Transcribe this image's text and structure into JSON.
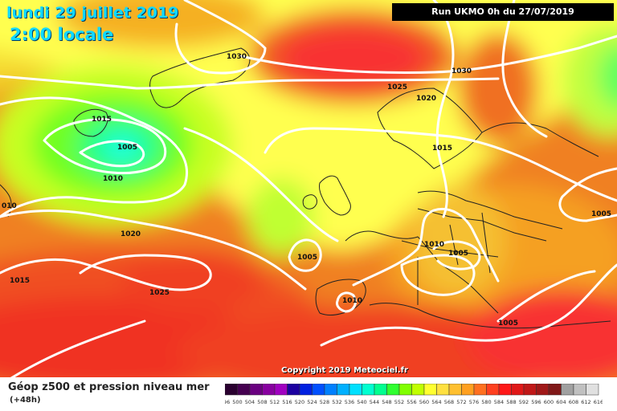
{
  "header": {
    "date": "lundi 29 juillet 2019",
    "local_time": "2:00 locale",
    "run": "Run UKMO 0h du 27/07/2019"
  },
  "copyright": "Copyright 2019 Meteociel.fr",
  "footer": {
    "title": "Géop z500 et pression niveau mer",
    "subtitle": "(+48h)"
  },
  "isobars": [
    {
      "text": "1030"
    },
    {
      "text": "1030"
    },
    {
      "text": "1025"
    },
    {
      "text": "1020"
    },
    {
      "text": "1015"
    },
    {
      "text": "1005"
    },
    {
      "text": "1010"
    },
    {
      "text": "1015"
    },
    {
      "text": "010"
    },
    {
      "text": "1020"
    },
    {
      "text": "1005"
    },
    {
      "text": "1010"
    },
    {
      "text": "1005"
    },
    {
      "text": "1005"
    },
    {
      "text": "1015"
    },
    {
      "text": "1025"
    },
    {
      "text": "1010"
    },
    {
      "text": "1005"
    }
  ],
  "colorbar": {
    "labels": [
      "496",
      "500",
      "504",
      "508",
      "512",
      "516",
      "520",
      "524",
      "528",
      "532",
      "536",
      "540",
      "544",
      "548",
      "552",
      "556",
      "560",
      "564",
      "568",
      "572",
      "576",
      "580",
      "584",
      "588",
      "592",
      "596",
      "600",
      "604",
      "608",
      "612",
      "616"
    ],
    "colors": [
      "#2a0030",
      "#450050",
      "#6a0080",
      "#8800a0",
      "#a000c0",
      "#1c00a0",
      "#0020e0",
      "#0050ff",
      "#0080ff",
      "#00b0ff",
      "#00e0ff",
      "#00ffd0",
      "#00ff90",
      "#30ff30",
      "#80ff00",
      "#c0ff00",
      "#ffff30",
      "#ffe040",
      "#ffc030",
      "#ffa020",
      "#ff7020",
      "#ff4020",
      "#ff1818",
      "#e01818",
      "#c01818",
      "#a01818",
      "#801818",
      "#a0a0a0",
      "#c0c0c0",
      "#e0e0e0"
    ]
  }
}
